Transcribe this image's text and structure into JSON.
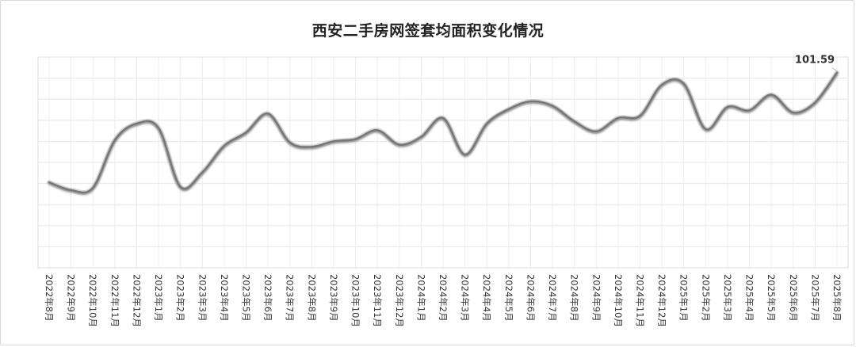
{
  "chart_data": {
    "type": "line",
    "title": "西安二手房网签套均面积变化情况",
    "xlabel": "",
    "ylabel": "",
    "categories": [
      "2022年8月",
      "2022年9月",
      "2022年10月",
      "2022年11月",
      "2022年12月",
      "2023年1月",
      "2023年2月",
      "2023年3月",
      "2023年4月",
      "2023年5月",
      "2023年6月",
      "2023年7月",
      "2023年8月",
      "2023年9月",
      "2023年10月",
      "2023年11月",
      "2023年12月",
      "2024年1月",
      "2024年2月",
      "2024年3月",
      "2024年4月",
      "2024年5月",
      "2024年6月",
      "2024年7月",
      "2024年8月",
      "2024年9月",
      "2024年10月",
      "2024年11月",
      "2024年12月",
      "2025年1月",
      "2025年2月",
      "2025年3月",
      "2025年4月",
      "2025年5月",
      "2025年6月",
      "2025年7月",
      "2025年8月"
    ],
    "series": [
      {
        "values": [
          91.7,
          91.0,
          91.2,
          95.5,
          97.0,
          96.6,
          91.3,
          92.6,
          95.0,
          96.2,
          97.9,
          95.3,
          94.9,
          95.4,
          95.6,
          96.4,
          95.1,
          95.8,
          97.5,
          94.2,
          97.0,
          98.3,
          99.0,
          98.6,
          97.2,
          96.3,
          97.5,
          97.7,
          100.5,
          100.6,
          96.5,
          98.5,
          98.2,
          99.6,
          98.0,
          98.9,
          101.59
        ]
      }
    ],
    "data_labels": [
      {
        "index": 36,
        "text": "101.59"
      }
    ],
    "ylim": [
      84.0,
      103.0
    ],
    "grid": true,
    "legend": "none",
    "line_color": "#777777"
  }
}
